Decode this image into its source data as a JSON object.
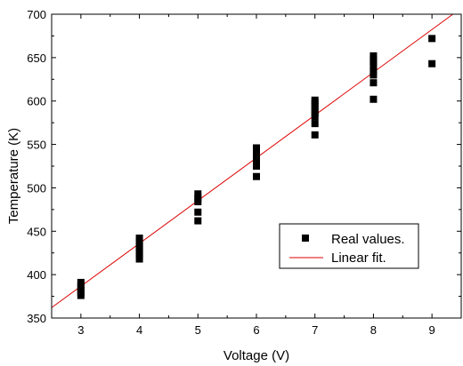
{
  "chart_data": {
    "type": "scatter",
    "xlabel": "Voltage (V)",
    "ylabel": "Temperature (K)",
    "xlim": [
      2.5,
      9.5
    ],
    "ylim": [
      350,
      700
    ],
    "x_ticks": [
      3,
      4,
      5,
      6,
      7,
      8,
      9
    ],
    "y_ticks": [
      350,
      400,
      450,
      500,
      550,
      600,
      650,
      700
    ],
    "grid": false,
    "legend_position": "lower-right",
    "series": [
      {
        "name": "Real values.",
        "kind": "scatter",
        "marker": "square",
        "color": "#000000",
        "points": [
          {
            "x": 3,
            "y": 376
          },
          {
            "x": 3,
            "y": 379
          },
          {
            "x": 3,
            "y": 382
          },
          {
            "x": 3,
            "y": 385
          },
          {
            "x": 3,
            "y": 388
          },
          {
            "x": 3,
            "y": 391
          },
          {
            "x": 4,
            "y": 418
          },
          {
            "x": 4,
            "y": 422
          },
          {
            "x": 4,
            "y": 426
          },
          {
            "x": 4,
            "y": 430
          },
          {
            "x": 4,
            "y": 434
          },
          {
            "x": 4,
            "y": 438
          },
          {
            "x": 4,
            "y": 442
          },
          {
            "x": 5,
            "y": 462
          },
          {
            "x": 5,
            "y": 472
          },
          {
            "x": 5,
            "y": 484
          },
          {
            "x": 5,
            "y": 488
          },
          {
            "x": 5,
            "y": 493
          },
          {
            "x": 6,
            "y": 513
          },
          {
            "x": 6,
            "y": 525
          },
          {
            "x": 6,
            "y": 533
          },
          {
            "x": 6,
            "y": 537
          },
          {
            "x": 6,
            "y": 541
          },
          {
            "x": 6,
            "y": 546
          },
          {
            "x": 7,
            "y": 561
          },
          {
            "x": 7,
            "y": 574
          },
          {
            "x": 7,
            "y": 582
          },
          {
            "x": 7,
            "y": 586
          },
          {
            "x": 7,
            "y": 590
          },
          {
            "x": 7,
            "y": 594
          },
          {
            "x": 7,
            "y": 598
          },
          {
            "x": 7,
            "y": 601
          },
          {
            "x": 8,
            "y": 602
          },
          {
            "x": 8,
            "y": 621
          },
          {
            "x": 8,
            "y": 630
          },
          {
            "x": 8,
            "y": 635
          },
          {
            "x": 8,
            "y": 640
          },
          {
            "x": 8,
            "y": 645
          },
          {
            "x": 8,
            "y": 648
          },
          {
            "x": 8,
            "y": 652
          },
          {
            "x": 9,
            "y": 643
          },
          {
            "x": 9,
            "y": 672
          }
        ]
      },
      {
        "name": "Linear fit.",
        "kind": "line",
        "color": "#dd0000",
        "line": [
          {
            "x": 2.5,
            "y": 362
          },
          {
            "x": 9.5,
            "y": 707
          }
        ]
      }
    ]
  }
}
